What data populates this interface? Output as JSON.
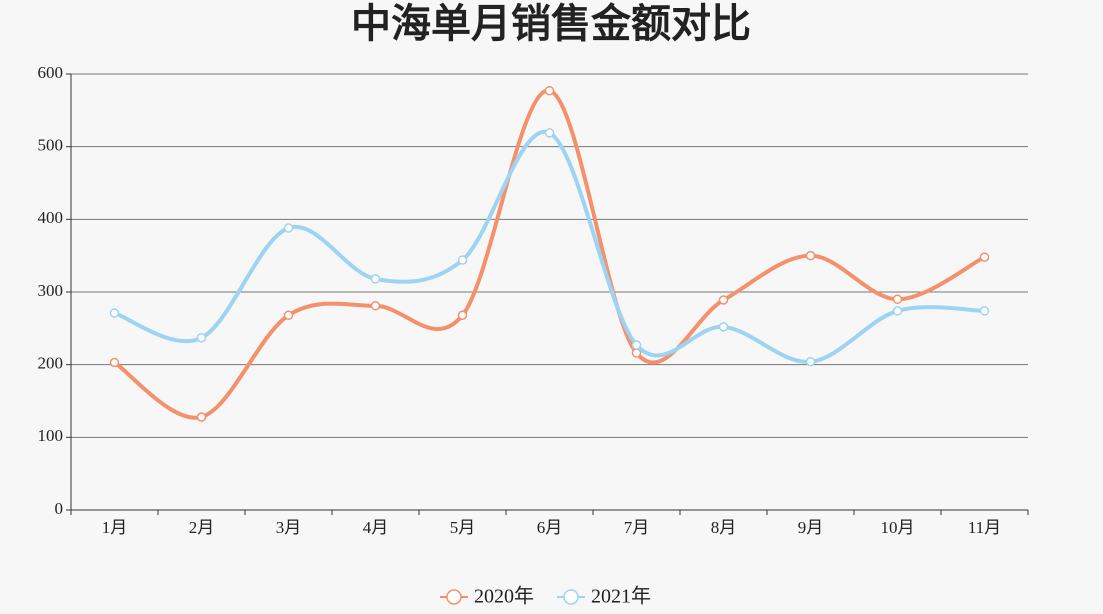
{
  "chart_data": {
    "type": "line",
    "title": "中海单月销售金额对比",
    "categories": [
      "1月",
      "2月",
      "3月",
      "4月",
      "5月",
      "6月",
      "7月",
      "8月",
      "9月",
      "10月",
      "11月"
    ],
    "series": [
      {
        "name": "2020年",
        "color": "#f4916c",
        "values": [
          203,
          128,
          268,
          281,
          268,
          577,
          216,
          289,
          350,
          290,
          348
        ]
      },
      {
        "name": "2021年",
        "color": "#9dd3f3",
        "values": [
          271,
          237,
          388,
          318,
          344,
          519,
          227,
          252,
          204,
          274,
          274
        ]
      }
    ],
    "ylim": [
      0,
      600
    ],
    "yticks": [
      0,
      100,
      200,
      300,
      400,
      500,
      600
    ],
    "grid": true,
    "smooth": true,
    "legend": "bottom"
  }
}
